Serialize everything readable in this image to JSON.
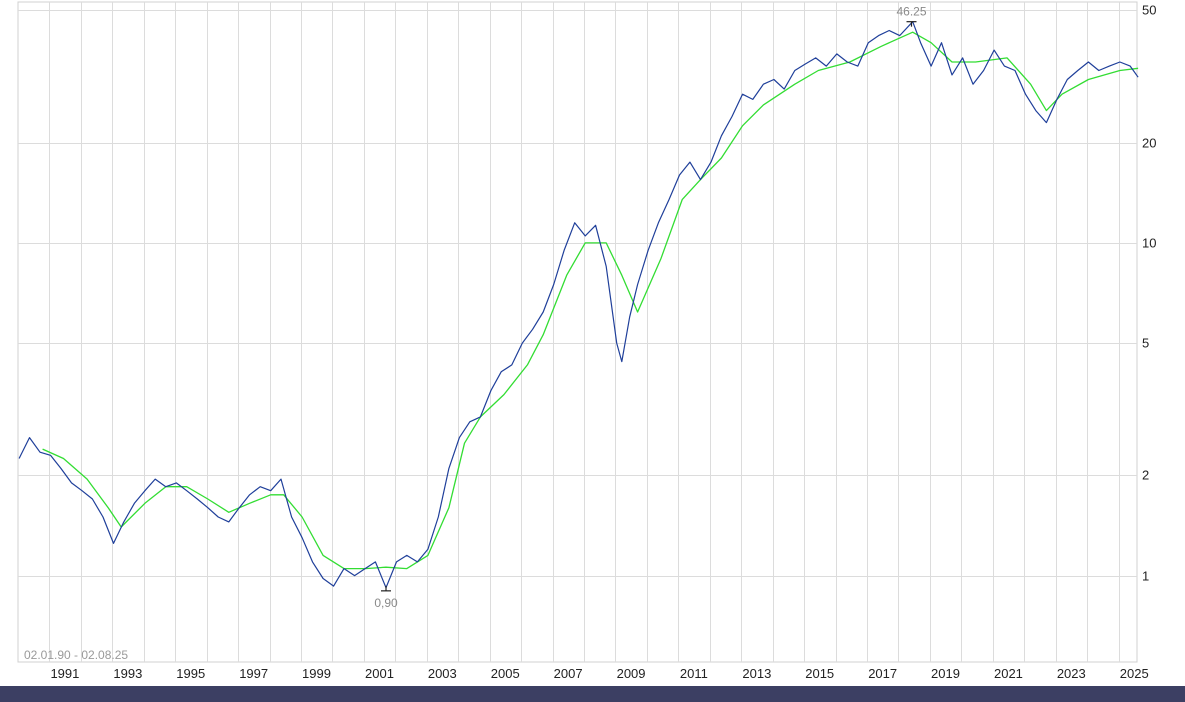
{
  "chart_data": {
    "type": "line",
    "scale": "log",
    "date_range_label": "02.01.90 - 02.08.25",
    "y_ticks": [
      1,
      2,
      5,
      10,
      20,
      50
    ],
    "y_tick_labels": [
      "1",
      "2",
      "5",
      "10",
      "20",
      "50"
    ],
    "ylim": [
      0.55,
      53
    ],
    "xlim": [
      "1990-01-02",
      "2025-08-02"
    ],
    "x_tick_labels": [
      "1991",
      "1993",
      "1995",
      "1997",
      "1999",
      "2001",
      "2003",
      "2005",
      "2007",
      "2009",
      "2011",
      "2013",
      "2015",
      "2017",
      "2019",
      "2021",
      "2023",
      "2025"
    ],
    "grid": true,
    "annotations": [
      {
        "date": "2018-06-01",
        "value": 46.25,
        "label": "46.25",
        "kind": "high"
      },
      {
        "date": "2001-09-15",
        "value": 0.9,
        "label": "0,90",
        "kind": "low"
      }
    ],
    "series": [
      {
        "color": "#1f3f9a",
        "points": [
          [
            "1990-01",
            2.25
          ],
          [
            "1990-05",
            2.6
          ],
          [
            "1990-09",
            2.35
          ],
          [
            "1991-01",
            2.3
          ],
          [
            "1991-05",
            2.1
          ],
          [
            "1991-09",
            1.9
          ],
          [
            "1992-01",
            1.8
          ],
          [
            "1992-05",
            1.7
          ],
          [
            "1992-09",
            1.5
          ],
          [
            "1993-01",
            1.25
          ],
          [
            "1993-05",
            1.45
          ],
          [
            "1993-09",
            1.65
          ],
          [
            "1994-01",
            1.8
          ],
          [
            "1994-05",
            1.95
          ],
          [
            "1994-09",
            1.85
          ],
          [
            "1995-01",
            1.9
          ],
          [
            "1995-05",
            1.8
          ],
          [
            "1995-09",
            1.7
          ],
          [
            "1996-01",
            1.6
          ],
          [
            "1996-05",
            1.5
          ],
          [
            "1996-09",
            1.45
          ],
          [
            "1997-01",
            1.6
          ],
          [
            "1997-05",
            1.75
          ],
          [
            "1997-09",
            1.85
          ],
          [
            "1998-01",
            1.8
          ],
          [
            "1998-05",
            1.95
          ],
          [
            "1998-09",
            1.5
          ],
          [
            "1999-01",
            1.3
          ],
          [
            "1999-05",
            1.1
          ],
          [
            "1999-09",
            0.98
          ],
          [
            "2000-01",
            0.93
          ],
          [
            "2000-05",
            1.05
          ],
          [
            "2000-09",
            1.0
          ],
          [
            "2001-01",
            1.05
          ],
          [
            "2001-05",
            1.1
          ],
          [
            "2001-09",
            0.92
          ],
          [
            "2002-01",
            1.1
          ],
          [
            "2002-05",
            1.15
          ],
          [
            "2002-09",
            1.1
          ],
          [
            "2003-01",
            1.2
          ],
          [
            "2003-05",
            1.5
          ],
          [
            "2003-09",
            2.1
          ],
          [
            "2004-01",
            2.6
          ],
          [
            "2004-05",
            2.9
          ],
          [
            "2004-09",
            3.0
          ],
          [
            "2005-01",
            3.6
          ],
          [
            "2005-05",
            4.1
          ],
          [
            "2005-09",
            4.3
          ],
          [
            "2006-01",
            5.0
          ],
          [
            "2006-05",
            5.5
          ],
          [
            "2006-09",
            6.2
          ],
          [
            "2007-01",
            7.5
          ],
          [
            "2007-05",
            9.5
          ],
          [
            "2007-09",
            11.5
          ],
          [
            "2008-01",
            10.5
          ],
          [
            "2008-05",
            11.3
          ],
          [
            "2008-09",
            8.5
          ],
          [
            "2009-01",
            5.0
          ],
          [
            "2009-03",
            4.4
          ],
          [
            "2009-06",
            6.0
          ],
          [
            "2009-09",
            7.5
          ],
          [
            "2010-01",
            9.5
          ],
          [
            "2010-05",
            11.5
          ],
          [
            "2010-09",
            13.5
          ],
          [
            "2011-01",
            16.0
          ],
          [
            "2011-05",
            17.5
          ],
          [
            "2011-09",
            15.5
          ],
          [
            "2012-01",
            17.5
          ],
          [
            "2012-05",
            21.0
          ],
          [
            "2012-09",
            24.0
          ],
          [
            "2013-01",
            28.0
          ],
          [
            "2013-05",
            27.0
          ],
          [
            "2013-09",
            30.0
          ],
          [
            "2014-01",
            31.0
          ],
          [
            "2014-05",
            29.0
          ],
          [
            "2014-09",
            33.0
          ],
          [
            "2015-01",
            34.5
          ],
          [
            "2015-05",
            36.0
          ],
          [
            "2015-09",
            34.0
          ],
          [
            "2016-01",
            37.0
          ],
          [
            "2016-05",
            35.0
          ],
          [
            "2016-09",
            34.0
          ],
          [
            "2017-01",
            40.0
          ],
          [
            "2017-05",
            42.0
          ],
          [
            "2017-09",
            43.5
          ],
          [
            "2018-01",
            42.0
          ],
          [
            "2018-06",
            46.25
          ],
          [
            "2018-09",
            40.0
          ],
          [
            "2019-01",
            34.0
          ],
          [
            "2019-05",
            40.0
          ],
          [
            "2019-09",
            32.0
          ],
          [
            "2020-01",
            36.0
          ],
          [
            "2020-05",
            30.0
          ],
          [
            "2020-09",
            33.0
          ],
          [
            "2021-01",
            38.0
          ],
          [
            "2021-05",
            34.0
          ],
          [
            "2021-09",
            33.0
          ],
          [
            "2022-01",
            28.0
          ],
          [
            "2022-05",
            25.0
          ],
          [
            "2022-09",
            23.0
          ],
          [
            "2023-01",
            27.0
          ],
          [
            "2023-05",
            31.0
          ],
          [
            "2023-09",
            33.0
          ],
          [
            "2024-01",
            35.0
          ],
          [
            "2024-05",
            33.0
          ],
          [
            "2024-09",
            34.0
          ],
          [
            "2025-01",
            35.0
          ],
          [
            "2025-05",
            34.0
          ],
          [
            "2025-08",
            31.5
          ]
        ]
      },
      {
        "color": "#33dd33",
        "points": [
          [
            "1990-10",
            2.4
          ],
          [
            "1991-06",
            2.25
          ],
          [
            "1992-03",
            1.95
          ],
          [
            "1992-11",
            1.6
          ],
          [
            "1993-04",
            1.4
          ],
          [
            "1994-01",
            1.65
          ],
          [
            "1994-09",
            1.85
          ],
          [
            "1995-05",
            1.85
          ],
          [
            "1996-01",
            1.7
          ],
          [
            "1996-09",
            1.55
          ],
          [
            "1997-05",
            1.65
          ],
          [
            "1998-01",
            1.75
          ],
          [
            "1998-06",
            1.75
          ],
          [
            "1999-01",
            1.5
          ],
          [
            "1999-09",
            1.15
          ],
          [
            "2000-05",
            1.05
          ],
          [
            "2001-01",
            1.05
          ],
          [
            "2001-09",
            1.06
          ],
          [
            "2002-05",
            1.05
          ],
          [
            "2003-01",
            1.15
          ],
          [
            "2003-09",
            1.6
          ],
          [
            "2004-03",
            2.5
          ],
          [
            "2004-09",
            3.0
          ],
          [
            "2005-06",
            3.5
          ],
          [
            "2006-03",
            4.3
          ],
          [
            "2006-09",
            5.3
          ],
          [
            "2007-06",
            8.0
          ],
          [
            "2008-01",
            10.0
          ],
          [
            "2008-09",
            10.0
          ],
          [
            "2009-03",
            8.0
          ],
          [
            "2009-09",
            6.2
          ],
          [
            "2010-06",
            9.0
          ],
          [
            "2011-02",
            13.5
          ],
          [
            "2011-09",
            15.5
          ],
          [
            "2012-05",
            18.0
          ],
          [
            "2013-01",
            22.5
          ],
          [
            "2013-09",
            26.0
          ],
          [
            "2014-09",
            30.0
          ],
          [
            "2015-06",
            33.0
          ],
          [
            "2016-06",
            35.0
          ],
          [
            "2017-06",
            39.0
          ],
          [
            "2018-06",
            43.0
          ],
          [
            "2019-01",
            40.0
          ],
          [
            "2019-09",
            35.0
          ],
          [
            "2020-06",
            35.0
          ],
          [
            "2021-06",
            36.0
          ],
          [
            "2022-03",
            30.0
          ],
          [
            "2022-09",
            25.0
          ],
          [
            "2023-03",
            28.0
          ],
          [
            "2024-01",
            31.0
          ],
          [
            "2025-01",
            33.0
          ],
          [
            "2025-08",
            33.5
          ]
        ]
      }
    ]
  },
  "footer": {
    "bar_color": "#3c3f63"
  }
}
